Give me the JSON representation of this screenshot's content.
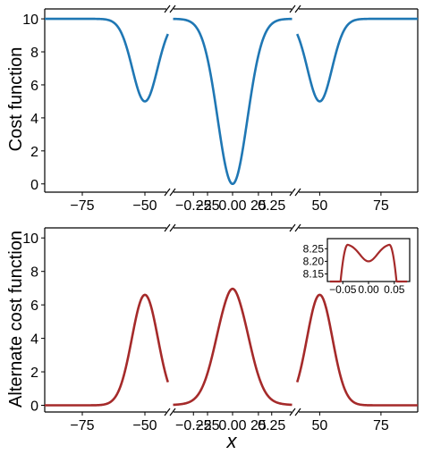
{
  "chart_data": [
    {
      "type": "line",
      "ylabel": "Cost function",
      "xlabel": "",
      "colors": {
        "curve": "#1f77b4"
      },
      "ylim": [
        -0.5,
        10.6
      ],
      "yticks": [
        "0",
        "2",
        "4",
        "6",
        "8",
        "10"
      ],
      "broken_x_axis": {
        "segments": [
          {
            "range": [
              -90,
              -40
            ],
            "ticks": [
              "−75",
              "−50",
              "−25"
            ],
            "tick_values": [
              -75,
              -50,
              -25
            ]
          },
          {
            "range": [
              -0.4,
              0.4
            ],
            "ticks": [
              "−0.25",
              "0.00",
              "0.25"
            ],
            "tick_values": [
              -0.25,
              0,
              0.25
            ]
          },
          {
            "range": [
              40,
              90
            ],
            "ticks": [
              "25",
              "50",
              "75"
            ],
            "tick_values": [
              25,
              50,
              75
            ]
          }
        ]
      },
      "curve_shape": {
        "baseline": 10,
        "outer_minima": [
          {
            "x": -50,
            "y": 5.0
          },
          {
            "x": 50,
            "y": 5.0
          }
        ],
        "central_minimum": {
          "x": 0.0,
          "y": 0.0
        },
        "sample_points": [
          {
            "x": -90,
            "y": 10.0
          },
          {
            "x": -65,
            "y": 9.8
          },
          {
            "x": -55,
            "y": 6.8
          },
          {
            "x": -50,
            "y": 5.0
          },
          {
            "x": -45,
            "y": 6.8
          },
          {
            "x": -40,
            "y": 10.0
          },
          {
            "x": -0.3,
            "y": 9.6
          },
          {
            "x": -0.15,
            "y": 6.5
          },
          {
            "x": 0.0,
            "y": 0.0
          },
          {
            "x": 0.15,
            "y": 6.5
          },
          {
            "x": 0.3,
            "y": 9.6
          }
        ]
      }
    },
    {
      "type": "line",
      "ylabel": "Alternate cost function",
      "xlabel": "x",
      "colors": {
        "curve": "#a52a2a"
      },
      "ylim": [
        -0.4,
        10.6
      ],
      "yticks": [
        "0",
        "2",
        "4",
        "6",
        "8",
        "10"
      ],
      "broken_x_axis": {
        "segments": [
          {
            "range": [
              -90,
              -40
            ],
            "ticks": [
              "−75",
              "−50",
              "−25"
            ],
            "tick_values": [
              -75,
              -50,
              -25
            ]
          },
          {
            "range": [
              -0.4,
              0.4
            ],
            "ticks": [
              "−0.25",
              "0.00",
              "0.25"
            ],
            "tick_values": [
              -0.25,
              0,
              0.25
            ]
          },
          {
            "range": [
              40,
              90
            ],
            "ticks": [
              "25",
              "50",
              "75"
            ],
            "tick_values": [
              25,
              50,
              75
            ]
          }
        ]
      },
      "curve_shape": {
        "outer_maxima": [
          {
            "x": -50,
            "y": 6.6
          },
          {
            "x": 50,
            "y": 6.6
          }
        ],
        "central_peak": {
          "x_left": -0.04,
          "x_right": 0.04,
          "y": 8.27,
          "dip_y": 8.2
        },
        "sample_points": [
          {
            "x": -90,
            "y": 0.0
          },
          {
            "x": -55,
            "y": 3.8
          },
          {
            "x": -50,
            "y": 6.6
          },
          {
            "x": -45,
            "y": 3.8
          },
          {
            "x": -40,
            "y": 0.0
          },
          {
            "x": -0.3,
            "y": 0.2
          },
          {
            "x": -0.1,
            "y": 6.5
          },
          {
            "x": -0.04,
            "y": 8.27
          },
          {
            "x": 0.0,
            "y": 8.2
          },
          {
            "x": 0.04,
            "y": 8.27
          },
          {
            "x": 0.1,
            "y": 6.5
          },
          {
            "x": 0.3,
            "y": 0.2
          }
        ]
      },
      "inset": {
        "type": "line",
        "xlim": [
          -0.08,
          0.08
        ],
        "ylim": [
          8.12,
          8.29
        ],
        "xticks": [
          "−0.05",
          "0.00",
          "0.05"
        ],
        "xtick_values": [
          -0.05,
          0.0,
          0.05
        ],
        "yticks": [
          "8.15",
          "8.20",
          "8.25"
        ],
        "ytick_values": [
          8.15,
          8.2,
          8.25
        ],
        "sample_points": [
          {
            "x": -0.08,
            "y": 8.12
          },
          {
            "x": -0.04,
            "y": 8.27
          },
          {
            "x": 0.0,
            "y": 8.2
          },
          {
            "x": 0.04,
            "y": 8.27
          },
          {
            "x": 0.08,
            "y": 8.12
          }
        ]
      }
    }
  ]
}
